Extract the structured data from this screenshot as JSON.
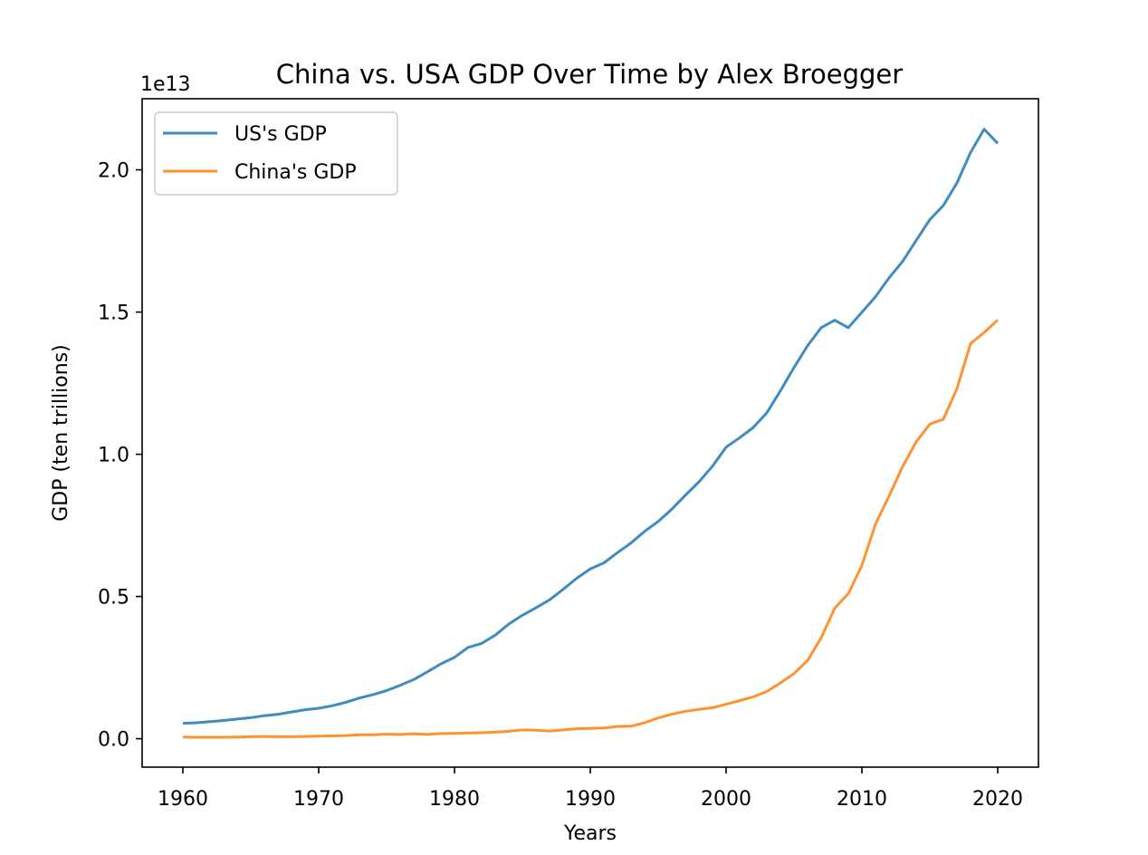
{
  "chart_data": {
    "type": "line",
    "title": "China vs. USA GDP Over Time by Alex Broegger",
    "xlabel": "Years",
    "ylabel": "GDP (ten trillions)",
    "offset_label": "1e13",
    "xlim": [
      1957,
      2023
    ],
    "ylim": [
      -0.1,
      2.25
    ],
    "x_ticks": [
      1960,
      1970,
      1980,
      1990,
      2000,
      2010,
      2020
    ],
    "x_tick_labels": [
      "1960",
      "1970",
      "1980",
      "1990",
      "2000",
      "2010",
      "2020"
    ],
    "y_ticks": [
      0.0,
      0.5,
      1.0,
      1.5,
      2.0
    ],
    "y_tick_labels": [
      "0.0",
      "0.5",
      "1.0",
      "1.5",
      "2.0"
    ],
    "legend_position": "top-left",
    "x": [
      1960,
      1961,
      1962,
      1963,
      1964,
      1965,
      1966,
      1967,
      1968,
      1969,
      1970,
      1971,
      1972,
      1973,
      1974,
      1975,
      1976,
      1977,
      1978,
      1979,
      1980,
      1981,
      1982,
      1983,
      1984,
      1985,
      1986,
      1987,
      1988,
      1989,
      1990,
      1991,
      1992,
      1993,
      1994,
      1995,
      1996,
      1997,
      1998,
      1999,
      2000,
      2001,
      2002,
      2003,
      2004,
      2005,
      2006,
      2007,
      2008,
      2009,
      2010,
      2011,
      2012,
      2013,
      2014,
      2015,
      2016,
      2017,
      2018,
      2019,
      2020
    ],
    "series": [
      {
        "name": "US's GDP",
        "color": "#1f77b4",
        "values": [
          0.054,
          0.056,
          0.06,
          0.064,
          0.069,
          0.074,
          0.081,
          0.086,
          0.094,
          0.102,
          0.107,
          0.116,
          0.128,
          0.143,
          0.155,
          0.169,
          0.188,
          0.208,
          0.235,
          0.263,
          0.286,
          0.321,
          0.335,
          0.364,
          0.403,
          0.434,
          0.46,
          0.488,
          0.525,
          0.564,
          0.597,
          0.618,
          0.654,
          0.688,
          0.729,
          0.764,
          0.807,
          0.856,
          0.903,
          0.958,
          1.025,
          1.058,
          1.094,
          1.146,
          1.223,
          1.305,
          1.382,
          1.445,
          1.471,
          1.445,
          1.499,
          1.554,
          1.62,
          1.678,
          1.752,
          1.825,
          1.875,
          1.954,
          2.061,
          2.143,
          2.093
        ]
      },
      {
        "name": "China's GDP",
        "color": "#ff7f0e",
        "values": [
          0.006,
          0.005,
          0.005,
          0.005,
          0.006,
          0.007,
          0.008,
          0.007,
          0.007,
          0.008,
          0.009,
          0.01,
          0.011,
          0.014,
          0.014,
          0.016,
          0.015,
          0.017,
          0.015,
          0.018,
          0.019,
          0.02,
          0.021,
          0.023,
          0.026,
          0.031,
          0.03,
          0.027,
          0.031,
          0.035,
          0.036,
          0.038,
          0.043,
          0.044,
          0.056,
          0.073,
          0.086,
          0.096,
          0.103,
          0.109,
          0.121,
          0.134,
          0.147,
          0.166,
          0.196,
          0.229,
          0.275,
          0.355,
          0.459,
          0.51,
          0.609,
          0.755,
          0.853,
          0.957,
          1.044,
          1.106,
          1.123,
          1.231,
          1.389,
          1.428,
          1.472
        ]
      }
    ]
  }
}
